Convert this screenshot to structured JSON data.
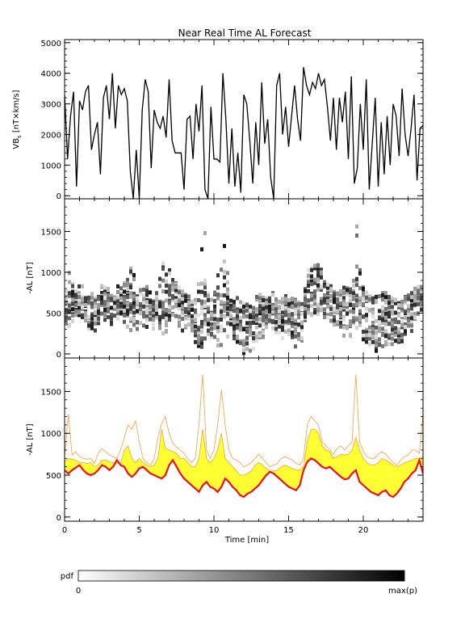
{
  "title": "Near Real Time AL Forecast",
  "colorbar": {
    "label": "pdf",
    "min_label": "0",
    "max_label": "max(p)",
    "colors": [
      "#ffffff",
      "#000000"
    ]
  },
  "colors": {
    "line": "#000000",
    "band_fill": "#ffff33",
    "band_edge": "#f0a040",
    "median": "#ee1111"
  },
  "chart_data": [
    {
      "type": "line",
      "panel": "top",
      "ylabel": "VB_s [nT×km/s]",
      "ylabel_main": "VB",
      "ylabel_sub": "s",
      "ylabel_rest": " [nT×km/s]",
      "xlim": [
        0,
        24
      ],
      "ylim": [
        -100,
        5100
      ],
      "yticks": [
        0,
        1000,
        2000,
        3000,
        4000,
        5000
      ],
      "x": [
        0.0,
        0.2,
        0.4,
        0.6,
        0.8,
        1.0,
        1.2,
        1.4,
        1.6,
        1.8,
        2.0,
        2.2,
        2.4,
        2.6,
        2.8,
        3.0,
        3.2,
        3.4,
        3.6,
        3.8,
        4.0,
        4.2,
        4.4,
        4.6,
        4.8,
        5.0,
        5.2,
        5.4,
        5.6,
        5.8,
        6.0,
        6.2,
        6.4,
        6.6,
        6.8,
        7.0,
        7.2,
        7.4,
        7.6,
        7.8,
        8.0,
        8.2,
        8.4,
        8.6,
        8.8,
        9.0,
        9.2,
        9.4,
        9.6,
        9.8,
        10.0,
        10.2,
        10.4,
        10.6,
        10.8,
        11.0,
        11.2,
        11.4,
        11.6,
        11.8,
        12.0,
        12.2,
        12.4,
        12.6,
        12.8,
        13.0,
        13.2,
        13.4,
        13.6,
        13.8,
        14.0,
        14.2,
        14.4,
        14.6,
        14.8,
        15.0,
        15.2,
        15.4,
        15.6,
        15.8,
        16.0,
        16.2,
        16.4,
        16.6,
        16.8,
        17.0,
        17.2,
        17.4,
        17.6,
        17.8,
        18.0,
        18.2,
        18.4,
        18.6,
        18.8,
        19.0,
        19.2,
        19.4,
        19.6,
        19.8,
        20.0,
        20.2,
        20.4,
        20.6,
        20.8,
        21.0,
        21.2,
        21.4,
        21.6,
        21.8,
        22.0,
        22.2,
        22.4,
        22.6,
        22.8,
        23.0,
        23.2,
        23.4,
        23.6,
        23.8,
        24.0
      ],
      "series": [
        {
          "values": [
            3300,
            1200,
            2600,
            3400,
            300,
            3100,
            2800,
            3400,
            3600,
            1500,
            2000,
            2400,
            700,
            3200,
            3600,
            2500,
            4000,
            2200,
            3600,
            3300,
            3500,
            3100,
            800,
            -100,
            1500,
            -100,
            2800,
            3800,
            3400,
            900,
            2800,
            2400,
            2200,
            2600,
            1900,
            3800,
            1800,
            1400,
            1400,
            1400,
            200,
            2500,
            2600,
            1200,
            3000,
            2100,
            3600,
            200,
            -100,
            2900,
            1200,
            1200,
            1100,
            4000,
            2500,
            400,
            2200,
            300,
            1400,
            100,
            3300,
            3000,
            1800,
            400,
            2400,
            1000,
            3700,
            1700,
            2500,
            600,
            -100,
            3600,
            4000,
            2000,
            2900,
            1600,
            2600,
            3600,
            2500,
            1800,
            4200,
            3600,
            3300,
            3700,
            3500,
            4000,
            3600,
            3800,
            2900,
            1800,
            3200,
            1500,
            3200,
            2400,
            3400,
            1200,
            3900,
            400,
            900,
            3000,
            1500,
            3800,
            200,
            1700,
            3200,
            300,
            2400,
            700,
            2600,
            1000,
            3000,
            2600,
            1300,
            3500,
            2000,
            1300,
            2200,
            3300,
            500,
            2200,
            2300
          ]
        }
      ]
    },
    {
      "type": "heatmap",
      "panel": "middle",
      "ylabel": "-AL [nT]",
      "xlim": [
        0,
        24
      ],
      "ylim": [
        -50,
        1900
      ],
      "yticks": [
        0,
        500,
        1000,
        1500
      ]
    },
    {
      "type": "area",
      "panel": "bottom",
      "ylabel": "-AL [nT]",
      "xlabel": "Time [min]",
      "xlim": [
        0,
        24
      ],
      "ylim": [
        -50,
        1900
      ],
      "xticks": [
        0,
        5,
        10,
        15,
        20
      ],
      "yticks": [
        0,
        500,
        1000,
        1500
      ],
      "x": [
        0.0,
        0.25,
        0.5,
        0.75,
        1.0,
        1.25,
        1.5,
        1.75,
        2.0,
        2.25,
        2.5,
        2.75,
        3.0,
        3.25,
        3.5,
        3.75,
        4.0,
        4.25,
        4.5,
        4.75,
        5.0,
        5.25,
        5.5,
        5.75,
        6.0,
        6.25,
        6.5,
        6.75,
        7.0,
        7.25,
        7.5,
        7.75,
        8.0,
        8.25,
        8.5,
        8.75,
        9.0,
        9.25,
        9.5,
        9.75,
        10.0,
        10.25,
        10.5,
        10.75,
        11.0,
        11.25,
        11.5,
        11.75,
        12.0,
        12.25,
        12.5,
        12.75,
        13.0,
        13.25,
        13.5,
        13.75,
        14.0,
        14.25,
        14.5,
        14.75,
        15.0,
        15.25,
        15.5,
        15.75,
        16.0,
        16.25,
        16.5,
        16.75,
        17.0,
        17.25,
        17.5,
        17.75,
        18.0,
        18.25,
        18.5,
        18.75,
        19.0,
        19.25,
        19.5,
        19.75,
        20.0,
        20.25,
        20.5,
        20.75,
        21.0,
        21.25,
        21.5,
        21.75,
        22.0,
        22.25,
        22.5,
        22.75,
        23.0,
        23.25,
        23.5,
        23.75,
        24.0
      ],
      "series": [
        {
          "name": "upper",
          "values": [
            720,
            1230,
            740,
            780,
            720,
            700,
            690,
            700,
            640,
            760,
            820,
            780,
            740,
            720,
            700,
            800,
            950,
            1100,
            1050,
            1150,
            900,
            700,
            650,
            620,
            700,
            950,
            1120,
            1200,
            1000,
            880,
            830,
            800,
            760,
            700,
            650,
            700,
            1100,
            1700,
            800,
            700,
            800,
            1100,
            1520,
            1100,
            800,
            700,
            680,
            650,
            600,
            620,
            650,
            700,
            750,
            700,
            650,
            600,
            620,
            640,
            700,
            720,
            700,
            680,
            640,
            620,
            700,
            1100,
            1200,
            1150,
            1100,
            900,
            850,
            800,
            750,
            820,
            850,
            800,
            850,
            900,
            1700,
            900,
            780,
            720,
            700,
            700,
            750,
            780,
            750,
            700,
            650,
            620,
            680,
            720,
            740,
            800,
            800,
            760,
            1240
          ]
        },
        {
          "name": "band_top",
          "values": [
            660,
            700,
            690,
            680,
            650,
            650,
            640,
            650,
            600,
            620,
            680,
            680,
            660,
            650,
            640,
            640,
            800,
            850,
            700,
            650,
            700,
            650,
            620,
            600,
            620,
            700,
            1050,
            820,
            800,
            780,
            760,
            700,
            700,
            650,
            600,
            600,
            700,
            1050,
            700,
            650,
            700,
            800,
            1000,
            700,
            650,
            600,
            550,
            500,
            500,
            520,
            550,
            620,
            650,
            620,
            580,
            550,
            550,
            560,
            600,
            620,
            600,
            580,
            560,
            560,
            600,
            900,
            1050,
            1050,
            1000,
            850,
            800,
            780,
            700,
            720,
            750,
            740,
            750,
            800,
            950,
            800,
            700,
            650,
            620,
            620,
            650,
            700,
            680,
            650,
            620,
            600,
            620,
            650,
            660,
            680,
            700,
            700,
            720
          ]
        },
        {
          "name": "median",
          "values": [
            560,
            520,
            560,
            590,
            620,
            560,
            520,
            500,
            520,
            560,
            620,
            600,
            560,
            600,
            680,
            620,
            600,
            520,
            480,
            520,
            580,
            600,
            560,
            520,
            500,
            480,
            460,
            500,
            620,
            680,
            600,
            520,
            460,
            420,
            380,
            340,
            300,
            380,
            420,
            360,
            340,
            300,
            360,
            460,
            420,
            360,
            320,
            260,
            240,
            280,
            300,
            340,
            380,
            440,
            500,
            540,
            520,
            480,
            440,
            400,
            360,
            340,
            320,
            380,
            560,
            660,
            700,
            680,
            640,
            600,
            580,
            600,
            560,
            520,
            480,
            450,
            460,
            520,
            560,
            420,
            380,
            340,
            300,
            280,
            260,
            300,
            320,
            260,
            240,
            280,
            340,
            420,
            460,
            520,
            560,
            680,
            520
          ]
        }
      ]
    }
  ]
}
